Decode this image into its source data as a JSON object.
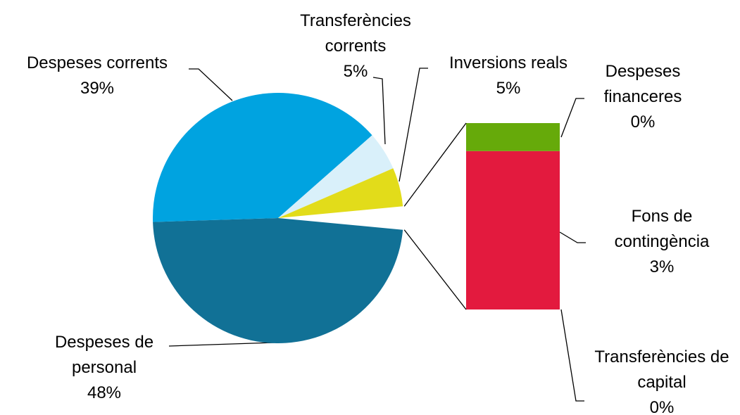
{
  "chart_data": {
    "type": "pie-of-bar",
    "pie": {
      "categories": [
        "Despeses de personal",
        "Despeses corrents",
        "Transferències corrents",
        "Inversions reals"
      ],
      "values": [
        48,
        39,
        5,
        5
      ],
      "value_labels": [
        "48%",
        "39%",
        "5%",
        "5%"
      ],
      "colors": [
        "#117196",
        "#00a3e0",
        "#d9f0fa",
        "#e2dc1a"
      ]
    },
    "bar": {
      "categories": [
        "Transferències de capital",
        "Fons de contingència",
        "Despeses financeres"
      ],
      "values": [
        0,
        2.55,
        0.45
      ],
      "value_labels": [
        "0%",
        "3%",
        "0%"
      ],
      "colors": [
        "#8a8a8a",
        "#e31a3e",
        "#66aa0a"
      ]
    }
  }
}
